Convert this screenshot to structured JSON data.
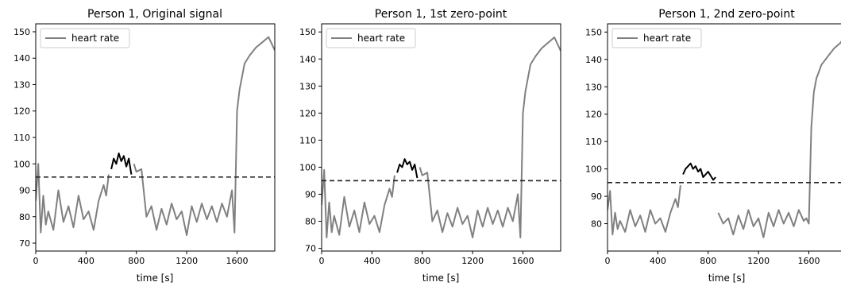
{
  "chart_data": [
    {
      "type": "line",
      "title": "Person 1, Original signal",
      "xlabel": "time [s]",
      "ylabel": "",
      "xlim": [
        0,
        1900
      ],
      "ylim": [
        67,
        153
      ],
      "xticks": [
        0,
        400,
        800,
        1200,
        1600
      ],
      "yticks": [
        70,
        80,
        90,
        100,
        110,
        120,
        130,
        140,
        150
      ],
      "threshold": 95,
      "legend": {
        "position": "top-left",
        "entries": [
          "heart rate"
        ]
      },
      "series": [
        {
          "name": "heart rate",
          "color": "#808080",
          "x": [
            0,
            20,
            40,
            60,
            80,
            100,
            140,
            180,
            220,
            260,
            300,
            340,
            380,
            420,
            460,
            500,
            540,
            560,
            580
          ],
          "values": [
            86,
            100,
            74,
            88,
            77,
            82,
            75,
            90,
            78,
            84,
            76,
            88,
            79,
            82,
            75,
            86,
            92,
            88,
            96
          ]
        },
        {
          "name": "",
          "color": "#000000",
          "x": [
            600,
            620,
            640,
            660,
            680,
            700,
            720,
            740,
            760
          ],
          "values": [
            98,
            102,
            100,
            104,
            101,
            103,
            99,
            102,
            96
          ]
        },
        {
          "name": "",
          "color": "#808080",
          "x": [
            780,
            800,
            840,
            880,
            920,
            960,
            1000,
            1040,
            1080,
            1120,
            1160,
            1200,
            1240,
            1280,
            1320,
            1360,
            1400,
            1440,
            1480,
            1520,
            1560,
            1580,
            1600,
            1620,
            1640,
            1660,
            1700,
            1750,
            1800,
            1850,
            1900
          ],
          "values": [
            100,
            97,
            98,
            80,
            84,
            75,
            83,
            77,
            85,
            79,
            82,
            73,
            84,
            78,
            85,
            79,
            84,
            78,
            85,
            80,
            90,
            74,
            120,
            128,
            133,
            138,
            141,
            144,
            146,
            148,
            143
          ]
        }
      ]
    },
    {
      "type": "line",
      "title": "Person 1, 1st zero-point",
      "xlabel": "time [s]",
      "ylabel": "",
      "xlim": [
        0,
        1900
      ],
      "ylim": [
        69,
        153
      ],
      "xticks": [
        0,
        400,
        800,
        1200,
        1600
      ],
      "yticks": [
        70,
        80,
        90,
        100,
        110,
        120,
        130,
        140,
        150
      ],
      "threshold": 95,
      "legend": {
        "position": "top-left",
        "entries": [
          "heart rate"
        ]
      },
      "series": [
        {
          "name": "heart rate",
          "color": "#808080",
          "x": [
            0,
            20,
            40,
            60,
            80,
            100,
            140,
            180,
            220,
            260,
            300,
            340,
            380,
            420,
            460,
            500,
            540,
            560,
            580
          ],
          "values": [
            86,
            99,
            74,
            87,
            76,
            82,
            75,
            89,
            78,
            84,
            76,
            87,
            79,
            82,
            76,
            86,
            92,
            89,
            97
          ]
        },
        {
          "name": "",
          "color": "#000000",
          "x": [
            600,
            620,
            640,
            660,
            680,
            700,
            720,
            740,
            760
          ],
          "values": [
            98,
            101,
            100,
            103,
            101,
            102,
            99,
            101,
            96
          ]
        },
        {
          "name": "",
          "color": "#808080",
          "x": [
            780,
            800,
            840,
            880,
            920,
            960,
            1000,
            1040,
            1080,
            1120,
            1160,
            1200,
            1240,
            1280,
            1320,
            1360,
            1400,
            1440,
            1480,
            1520,
            1560,
            1580,
            1600,
            1620,
            1640,
            1660,
            1700,
            1750,
            1800,
            1850,
            1900
          ],
          "values": [
            100,
            97,
            98,
            80,
            84,
            76,
            83,
            78,
            85,
            79,
            82,
            74,
            84,
            78,
            85,
            79,
            84,
            78,
            85,
            80,
            90,
            74,
            120,
            128,
            133,
            138,
            141,
            144,
            146,
            148,
            143
          ]
        }
      ]
    },
    {
      "type": "line",
      "title": "Person 1, 2nd zero-point",
      "xlabel": "time [s]",
      "ylabel": "",
      "xlim": [
        0,
        1900
      ],
      "ylim": [
        70,
        153
      ],
      "xticks": [
        0,
        400,
        800,
        1200,
        1600
      ],
      "yticks": [
        80,
        90,
        100,
        110,
        120,
        130,
        140,
        150
      ],
      "threshold": 95,
      "legend": {
        "position": "top-left",
        "entries": [
          "heart rate"
        ]
      },
      "series": [
        {
          "name": "heart rate",
          "color": "#808080",
          "x": [
            0,
            20,
            40,
            60,
            80,
            100,
            140,
            180,
            220,
            260,
            300,
            340,
            380,
            420,
            460,
            500,
            540,
            560,
            580
          ],
          "values": [
            85,
            92,
            76,
            84,
            78,
            81,
            77,
            85,
            79,
            83,
            77,
            85,
            80,
            82,
            77,
            84,
            89,
            86,
            94
          ]
        },
        {
          "name": "",
          "color": "#000000",
          "x": [
            600,
            620,
            640,
            660,
            680,
            700,
            720,
            740,
            760,
            800,
            840,
            860
          ],
          "values": [
            98,
            100,
            101,
            102,
            100,
            101,
            99,
            100,
            97,
            99,
            96,
            97
          ]
        },
        {
          "name": "",
          "color": "#808080",
          "x": [
            880,
            920,
            960,
            1000,
            1040,
            1080,
            1120,
            1160,
            1200,
            1240,
            1280,
            1320,
            1360,
            1400,
            1440,
            1480,
            1520,
            1560,
            1580,
            1600,
            1620,
            1640,
            1660,
            1700,
            1750,
            1800,
            1850,
            1900
          ],
          "values": [
            84,
            80,
            82,
            76,
            83,
            78,
            85,
            79,
            82,
            75,
            84,
            79,
            85,
            80,
            84,
            79,
            85,
            81,
            82,
            80,
            115,
            128,
            133,
            138,
            141,
            144,
            146,
            149
          ]
        }
      ]
    }
  ]
}
